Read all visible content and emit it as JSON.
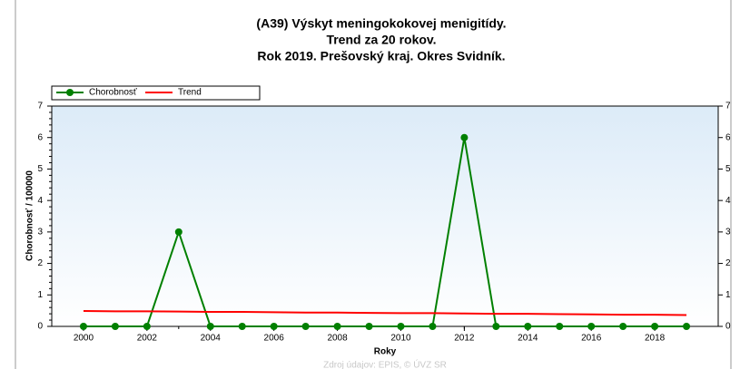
{
  "chart_data": {
    "type": "line",
    "title": [
      "(A39) Výskyt meningokokovej menigitídy.",
      "Trend za 20 rokov.",
      "Rok 2019. Prešovský kraj. Okres Svidník."
    ],
    "xlabel": "Roky",
    "ylabel": "Chorobnosť / 100000",
    "source": "Zdroj údajov: EPIS, © ÚVZ SR",
    "x": [
      2000,
      2001,
      2002,
      2003,
      2004,
      2005,
      2006,
      2007,
      2008,
      2009,
      2010,
      2011,
      2012,
      2013,
      2014,
      2015,
      2016,
      2017,
      2018,
      2019
    ],
    "series": [
      {
        "name": "Chorobnosť",
        "color": "#008000",
        "values": [
          0,
          0,
          0,
          3,
          0,
          0,
          0,
          0,
          0,
          0,
          0,
          0,
          6,
          0,
          0,
          0,
          0,
          0,
          0,
          0
        ]
      },
      {
        "name": "Trend",
        "color": "#ff0000",
        "values": [
          0.49,
          0.48,
          0.48,
          0.47,
          0.46,
          0.46,
          0.45,
          0.44,
          0.44,
          0.43,
          0.42,
          0.42,
          0.41,
          0.4,
          0.4,
          0.39,
          0.38,
          0.37,
          0.37,
          0.36
        ]
      }
    ],
    "xlim": [
      1999,
      2020
    ],
    "xticks": [
      2000,
      2002,
      2004,
      2006,
      2008,
      2010,
      2012,
      2014,
      2016,
      2018
    ],
    "ylim": [
      0,
      7
    ],
    "yticks": [
      0,
      1,
      2,
      3,
      4,
      5,
      6,
      7
    ],
    "y2lim": [
      0,
      7
    ],
    "y2ticks": [
      0,
      1,
      2,
      3,
      4,
      5,
      6,
      7
    ],
    "legend": "top-left"
  }
}
